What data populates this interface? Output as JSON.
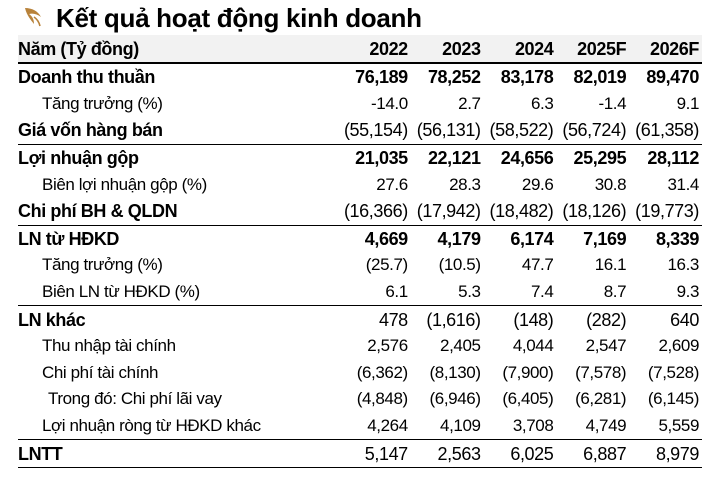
{
  "title": "Kết quả hoạt động kinh doanh",
  "logo_icon": "leaf-logo-icon",
  "accent_color": "#b8823a",
  "header": [
    "Năm (Tỷ đồng)",
    "2022",
    "2023",
    "2024",
    "2025F",
    "2026F"
  ],
  "rows": [
    {
      "label": "Doanh thu thuần",
      "values": [
        "76,189",
        "78,252",
        "83,178",
        "82,019",
        "89,470"
      ]
    },
    {
      "label": "Tăng trưởng (%)",
      "values": [
        "-14.0",
        "2.7",
        "6.3",
        "-1.4",
        "9.1"
      ]
    },
    {
      "label": "Giá vốn hàng bán",
      "values": [
        "(55,154)",
        "(56,131)",
        "(58,522)",
        "(56,724)",
        "(61,358)"
      ]
    },
    {
      "label": "Lợi nhuận gộp",
      "values": [
        "21,035",
        "22,121",
        "24,656",
        "25,295",
        "28,112"
      ]
    },
    {
      "label": "Biên lợi nhuận gộp (%)",
      "values": [
        "27.6",
        "28.3",
        "29.6",
        "30.8",
        "31.4"
      ]
    },
    {
      "label": "Chi phí BH & QLDN",
      "values": [
        "(16,366)",
        "(17,942)",
        "(18,482)",
        "(18,126)",
        "(19,773)"
      ]
    },
    {
      "label": "LN từ HĐKD",
      "values": [
        "4,669",
        "4,179",
        "6,174",
        "7,169",
        "8,339"
      ]
    },
    {
      "label": "Tăng trưởng (%)",
      "values": [
        "(25.7)",
        "(10.5)",
        "47.7",
        "16.1",
        "16.3"
      ]
    },
    {
      "label": "Biên LN từ HĐKD (%)",
      "values": [
        "6.1",
        "5.3",
        "7.4",
        "8.7",
        "9.3"
      ]
    },
    {
      "label": "LN khác",
      "values": [
        "478",
        "(1,616)",
        "(148)",
        "(282)",
        "640"
      ]
    },
    {
      "label": "Thu nhập tài chính",
      "values": [
        "2,576",
        "2,405",
        "4,044",
        "2,547",
        "2,609"
      ]
    },
    {
      "label": "Chi phí tài chính",
      "values": [
        "(6,362)",
        "(8,130)",
        "(7,900)",
        "(7,578)",
        "(7,528)"
      ]
    },
    {
      "label": "Trong đó: Chi phí lãi vay",
      "values": [
        "(4,848)",
        "(6,946)",
        "(6,405)",
        "(6,281)",
        "(6,145)"
      ]
    },
    {
      "label": "Lợi nhuận ròng từ HĐKD khác",
      "values": [
        "4,264",
        "4,109",
        "3,708",
        "4,749",
        "5,559"
      ]
    },
    {
      "label": "LNTT",
      "values": [
        "5,147",
        "2,563",
        "6,025",
        "6,887",
        "8,979"
      ]
    }
  ]
}
